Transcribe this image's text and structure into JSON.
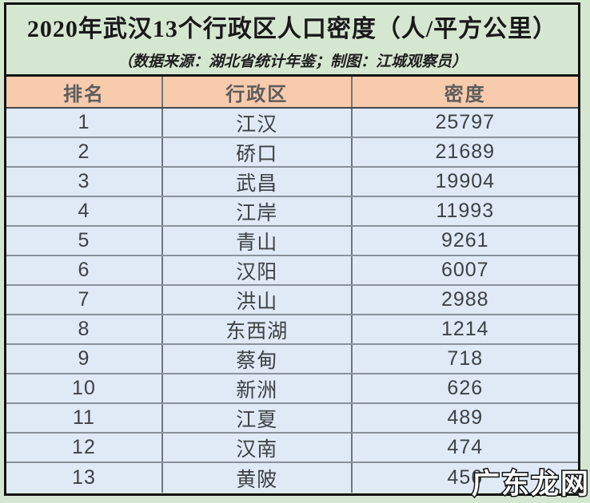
{
  "title": "2020年武汉13个行政区人口密度（人/平方公里）",
  "subtitle": "（数据来源：湖北省统计年鉴；制图：江城观察员）",
  "watermark": "广东龙网",
  "colors": {
    "page_background": "#d6e7d1",
    "frame_border": "#121212",
    "header_background": "#f8cbad",
    "header_text": "#5d5d5d",
    "row_background": "#dfeaf6",
    "row_separator": "#8a919b",
    "column_separator": "#6e757e",
    "cell_text": "#3e4144",
    "title_text": "#191919",
    "watermark_fill": "#ffffff",
    "watermark_outline": "#111111"
  },
  "table": {
    "columns": [
      "排名",
      "行政区",
      "密度"
    ],
    "rows": [
      {
        "rank": "1",
        "district": "江汉",
        "density": "25797"
      },
      {
        "rank": "2",
        "district": "硚口",
        "density": "21689"
      },
      {
        "rank": "3",
        "district": "武昌",
        "density": "19904"
      },
      {
        "rank": "4",
        "district": "江岸",
        "density": "11993"
      },
      {
        "rank": "5",
        "district": "青山",
        "density": "9261"
      },
      {
        "rank": "6",
        "district": "汉阳",
        "density": "6007"
      },
      {
        "rank": "7",
        "district": "洪山",
        "density": "2988"
      },
      {
        "rank": "8",
        "district": "东西湖",
        "density": "1214"
      },
      {
        "rank": "9",
        "district": "蔡甸",
        "density": "718"
      },
      {
        "rank": "10",
        "district": "新洲",
        "density": "626"
      },
      {
        "rank": "11",
        "district": "江夏",
        "density": "489"
      },
      {
        "rank": "12",
        "district": "汉南",
        "density": "474"
      },
      {
        "rank": "13",
        "district": "黄陂",
        "density": "456"
      }
    ]
  },
  "chart_data": {
    "type": "table",
    "title": "2020年武汉13个行政区人口密度（人/平方公里）",
    "subtitle": "（数据来源：湖北省统计年鉴；制图：江城观察员）",
    "columns": [
      "排名",
      "行政区",
      "密度"
    ],
    "categories": [
      "江汉",
      "硚口",
      "武昌",
      "江岸",
      "青山",
      "汉阳",
      "洪山",
      "东西湖",
      "蔡甸",
      "新洲",
      "江夏",
      "汉南",
      "黄陂"
    ],
    "values": [
      25797,
      21689,
      19904,
      11993,
      9261,
      6007,
      2988,
      1214,
      718,
      626,
      489,
      474,
      456
    ],
    "ylabel": "人口密度（人/平方公里）",
    "source": "湖北省统计年鉴"
  }
}
